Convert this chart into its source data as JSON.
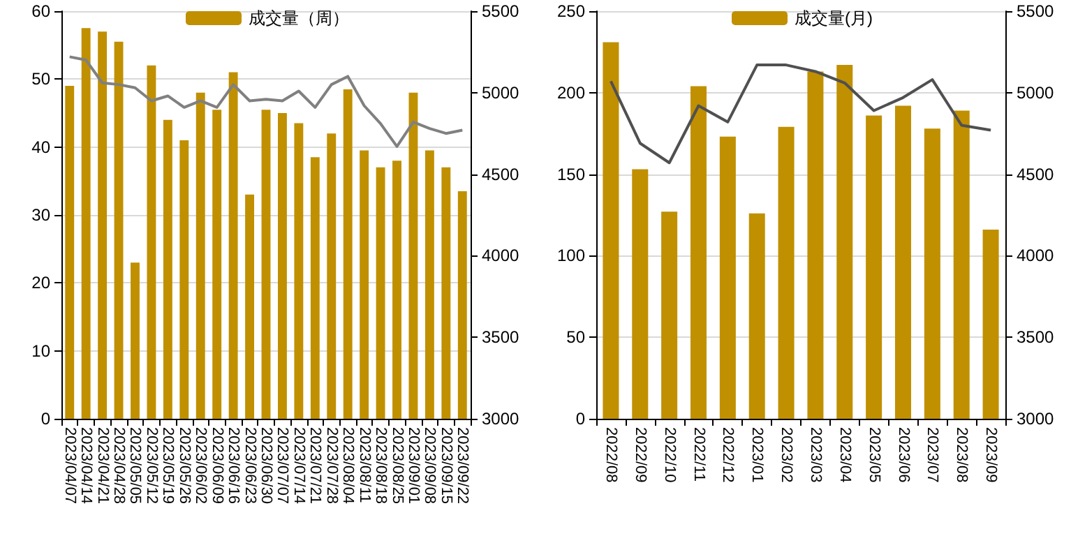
{
  "chart_data": [
    {
      "type": "bar",
      "categories": [
        "2023/04/07",
        "2023/04/14",
        "2023/04/21",
        "2023/04/28",
        "2023/05/05",
        "2023/05/12",
        "2023/05/19",
        "2023/05/26",
        "2023/06/02",
        "2023/06/09",
        "2023/06/16",
        "2023/06/23",
        "2023/06/30",
        "2023/07/07",
        "2023/07/14",
        "2023/07/21",
        "2023/07/28",
        "2023/08/04",
        "2023/08/11",
        "2023/08/18",
        "2023/08/25",
        "2023/09/01",
        "2023/09/08",
        "2023/09/15",
        "2023/09/22"
      ],
      "series": [
        {
          "name": "成交量（周）",
          "color": "#c09000",
          "values": [
            49,
            57.5,
            57,
            55.5,
            23,
            52,
            44,
            41,
            48,
            45.5,
            51,
            33,
            45.5,
            45,
            43.5,
            38.5,
            42,
            48.5,
            39.5,
            37,
            38,
            48,
            39.5,
            37,
            33.5
          ]
        },
        {
          "type": "line",
          "axis": "y2",
          "color": "#808080",
          "values": [
            5220,
            5200,
            5060,
            5050,
            5030,
            4950,
            4980,
            4910,
            4950,
            4910,
            5050,
            4950,
            4960,
            4950,
            5010,
            4910,
            5050,
            5100,
            4920,
            4810,
            4670,
            4820,
            4780,
            4750,
            4770
          ]
        }
      ],
      "ylim": [
        0,
        60
      ],
      "yticks": [
        0,
        10,
        20,
        30,
        40,
        50,
        60
      ],
      "y2lim": [
        3000,
        5500
      ],
      "y2ticks": [
        3000,
        3500,
        4000,
        4500,
        5000,
        5500
      ],
      "grid": "y",
      "legend": "top"
    },
    {
      "type": "bar",
      "categories": [
        "2022/08",
        "2022/09",
        "2022/10",
        "2022/11",
        "2022/12",
        "2023/01",
        "2023/02",
        "2023/03",
        "2023/04",
        "2023/05",
        "2023/06",
        "2023/07",
        "2023/08",
        "2023/09"
      ],
      "series": [
        {
          "name": "成交量(月)",
          "color": "#c09000",
          "values": [
            231,
            153,
            127,
            204,
            173,
            126,
            179,
            213,
            217,
            186,
            192,
            178,
            189,
            116
          ]
        },
        {
          "type": "line",
          "axis": "y2",
          "color": "#505050",
          "values": [
            5070,
            4690,
            4570,
            4920,
            4820,
            5170,
            5170,
            5130,
            5060,
            4890,
            4970,
            5080,
            4800,
            4770
          ]
        }
      ],
      "ylim": [
        0,
        250
      ],
      "yticks": [
        0,
        50,
        100,
        150,
        200,
        250
      ],
      "y2lim": [
        3000,
        5500
      ],
      "y2ticks": [
        3000,
        3500,
        4000,
        4500,
        5000,
        5500
      ],
      "grid": "y",
      "legend": "top"
    }
  ]
}
